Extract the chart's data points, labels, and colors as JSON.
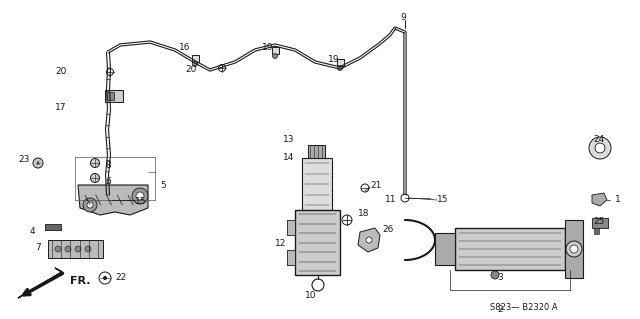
{
  "bg_color": "#ffffff",
  "diagram_code": "S823— B2320 A",
  "fr_label": "FR.",
  "line_color": "#1a1a1a",
  "pipe_lw": 1.8,
  "thin_lw": 0.8,
  "label_fontsize": 6.5
}
